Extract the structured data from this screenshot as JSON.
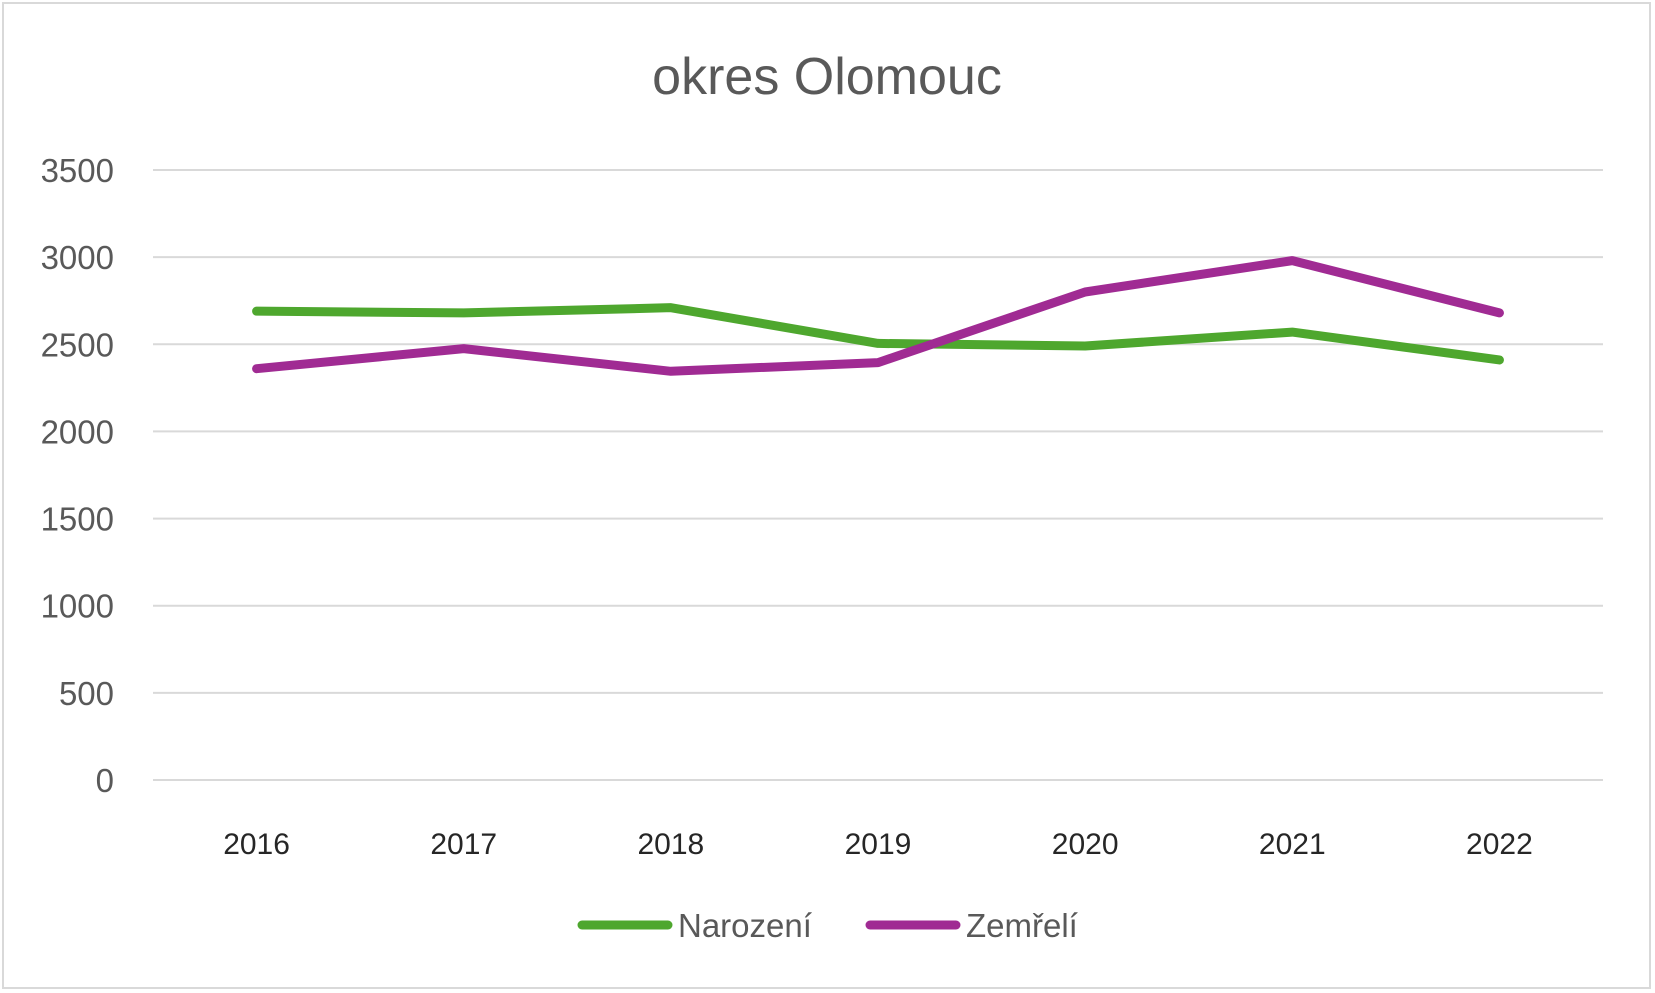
{
  "chart_data": {
    "type": "line",
    "title": "okres Olomouc",
    "xlabel": "",
    "ylabel": "",
    "categories": [
      "2016",
      "2017",
      "2018",
      "2019",
      "2020",
      "2021",
      "2022"
    ],
    "ylim": [
      0,
      3500
    ],
    "yticks": [
      "0",
      "500",
      "1000",
      "1500",
      "2000",
      "2500",
      "3000",
      "3500"
    ],
    "grid": true,
    "legend_position": "bottom",
    "series": [
      {
        "name": "Narození",
        "color": "#4ea72e",
        "values": [
          2690,
          2680,
          2710,
          2505,
          2490,
          2570,
          2410
        ]
      },
      {
        "name": "Zemřelí",
        "color": "#a02b93",
        "values": [
          2360,
          2475,
          2345,
          2395,
          2800,
          2980,
          2680
        ]
      }
    ]
  }
}
